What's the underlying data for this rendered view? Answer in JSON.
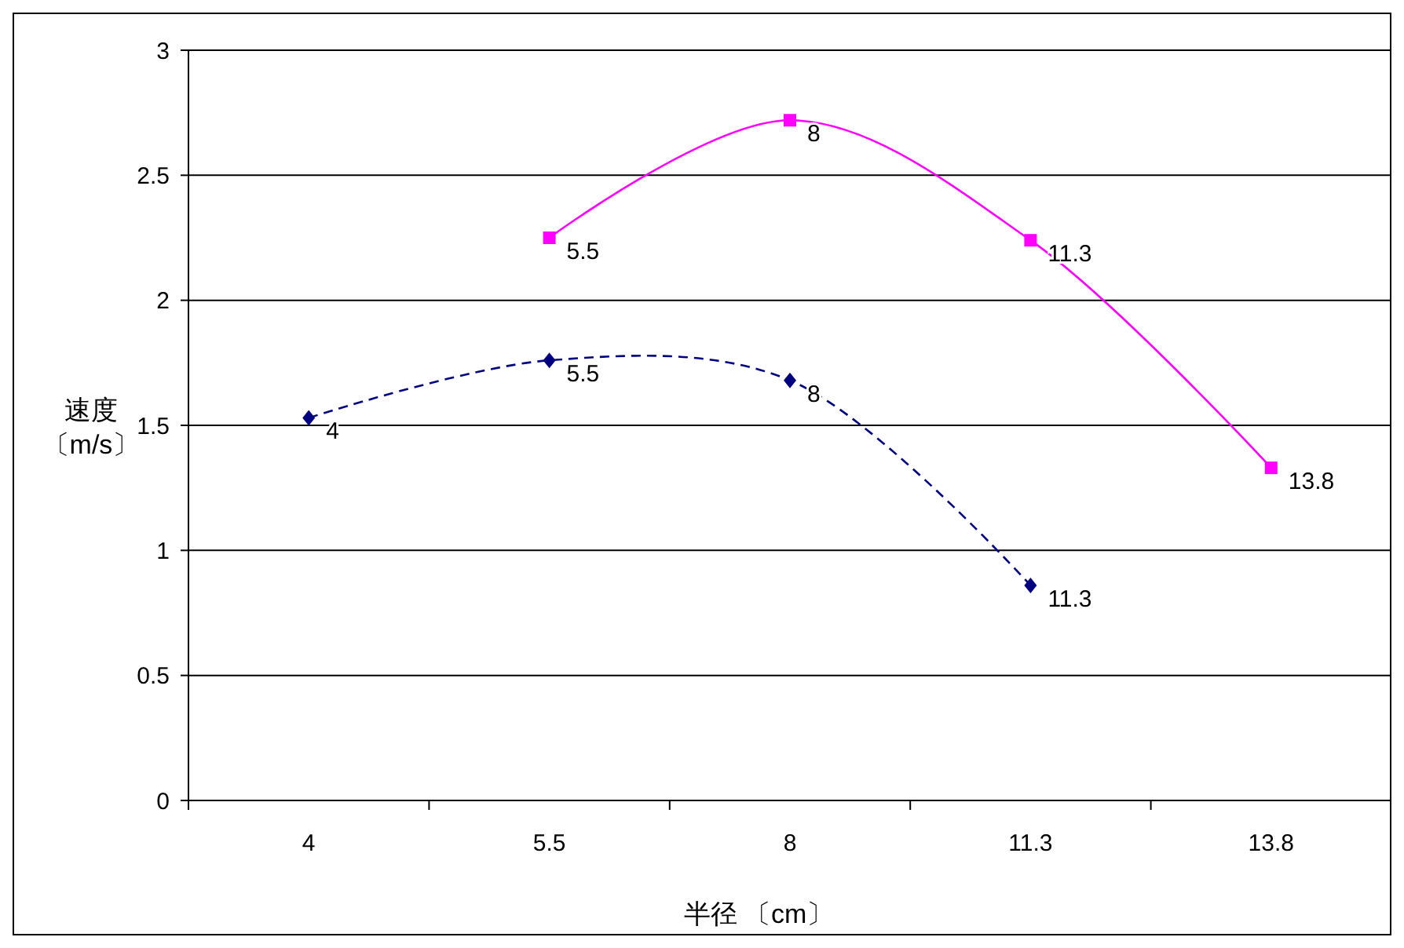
{
  "chart_data": {
    "type": "line",
    "xlabel": "半径 〔cm〕",
    "ylabel": "速度〔m/s〕",
    "categories": [
      "4",
      "5.5",
      "8",
      "11.3",
      "13.8"
    ],
    "series": [
      {
        "color": "#ff00ff",
        "marker": "square",
        "line_style": "solid",
        "values": [
          null,
          2.25,
          2.72,
          2.24,
          1.33
        ]
      },
      {
        "color": "#000080",
        "marker": "diamond",
        "line_style": "dashed",
        "values": [
          1.53,
          1.76,
          1.68,
          0.86,
          null
        ]
      }
    ],
    "ylim": [
      0,
      3
    ],
    "yticks": [
      0,
      0.5,
      1,
      1.5,
      2,
      2.5,
      3
    ],
    "grid": "y",
    "annotations": [
      {
        "text": "5.5",
        "x": "5.5",
        "y": 2.25
      },
      {
        "text": "8",
        "x": "8",
        "y": 2.72
      },
      {
        "text": "11.3",
        "x": "11.3",
        "y": 2.24
      },
      {
        "text": "13.8",
        "x": "13.8",
        "y": 1.33
      },
      {
        "text": "4",
        "x": "4",
        "y": 1.53
      },
      {
        "text": "5.5",
        "x": "5.5",
        "y": 1.76
      },
      {
        "text": "8",
        "x": "8",
        "y": 1.68
      },
      {
        "text": "11.3",
        "x": "11.3",
        "y": 0.86
      }
    ]
  }
}
